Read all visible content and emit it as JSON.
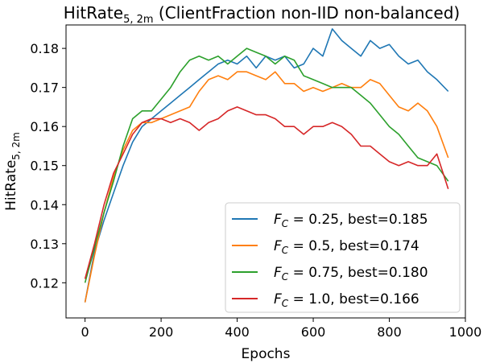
{
  "chart_data": {
    "type": "line",
    "title_main": "HitRate",
    "title_sub": "5, 2m",
    "title_rest": " (ClientFraction non-IID non-balanced)",
    "xlabel": "Epochs",
    "ylabel_main": "HitRate",
    "ylabel_sub": "5, 2m",
    "xlim": [
      -50,
      1000
    ],
    "ylim": [
      0.111,
      0.186
    ],
    "xticks": [
      0,
      200,
      400,
      600,
      800,
      1000
    ],
    "yticks": [
      0.12,
      0.13,
      0.14,
      0.15,
      0.16,
      0.17,
      0.18
    ],
    "legend_position": "lower-right",
    "series": [
      {
        "name_symbol": "F",
        "name_sub": "C",
        "name_rest": " = 0.25, best=0.185",
        "color": "#1f77b4",
        "x": [
          0,
          25,
          50,
          75,
          100,
          125,
          150,
          175,
          200,
          225,
          250,
          275,
          300,
          325,
          350,
          375,
          400,
          425,
          450,
          475,
          500,
          525,
          550,
          575,
          600,
          625,
          650,
          675,
          700,
          725,
          750,
          775,
          800,
          825,
          850,
          875,
          900,
          925,
          955
        ],
        "y": [
          0.115,
          0.128,
          0.136,
          0.143,
          0.15,
          0.156,
          0.16,
          0.162,
          0.164,
          0.166,
          0.168,
          0.17,
          0.172,
          0.174,
          0.176,
          0.177,
          0.176,
          0.178,
          0.175,
          0.178,
          0.177,
          0.178,
          0.175,
          0.176,
          0.18,
          0.178,
          0.185,
          0.182,
          0.18,
          0.178,
          0.182,
          0.18,
          0.181,
          0.178,
          0.176,
          0.177,
          0.174,
          0.172,
          0.169
        ]
      },
      {
        "name_symbol": "F",
        "name_sub": "C",
        "name_rest": " = 0.5, best=0.174",
        "color": "#ff7f0e",
        "x": [
          0,
          25,
          50,
          75,
          100,
          125,
          150,
          175,
          200,
          225,
          250,
          275,
          300,
          325,
          350,
          375,
          400,
          425,
          450,
          475,
          500,
          525,
          550,
          575,
          600,
          625,
          650,
          675,
          700,
          725,
          750,
          775,
          800,
          825,
          850,
          875,
          900,
          925,
          955
        ],
        "y": [
          0.115,
          0.127,
          0.138,
          0.147,
          0.154,
          0.159,
          0.161,
          0.161,
          0.162,
          0.163,
          0.164,
          0.165,
          0.169,
          0.172,
          0.173,
          0.172,
          0.174,
          0.174,
          0.173,
          0.172,
          0.174,
          0.171,
          0.171,
          0.169,
          0.17,
          0.169,
          0.17,
          0.171,
          0.17,
          0.17,
          0.172,
          0.171,
          0.168,
          0.165,
          0.164,
          0.166,
          0.164,
          0.16,
          0.152
        ]
      },
      {
        "name_symbol": "F",
        "name_sub": "C",
        "name_rest": " = 0.75, best=0.180",
        "color": "#2ca02c",
        "x": [
          0,
          25,
          50,
          75,
          100,
          125,
          150,
          175,
          200,
          225,
          250,
          275,
          300,
          325,
          350,
          375,
          400,
          425,
          450,
          475,
          500,
          525,
          550,
          575,
          600,
          625,
          650,
          675,
          700,
          725,
          750,
          775,
          800,
          825,
          850,
          875,
          900,
          925,
          955
        ],
        "y": [
          0.12,
          0.129,
          0.138,
          0.146,
          0.155,
          0.162,
          0.164,
          0.164,
          0.167,
          0.17,
          0.174,
          0.177,
          0.178,
          0.177,
          0.178,
          0.176,
          0.178,
          0.18,
          0.179,
          0.178,
          0.176,
          0.178,
          0.177,
          0.173,
          0.172,
          0.171,
          0.17,
          0.17,
          0.17,
          0.168,
          0.166,
          0.163,
          0.16,
          0.158,
          0.155,
          0.152,
          0.151,
          0.15,
          0.146
        ]
      },
      {
        "name_symbol": "F",
        "name_sub": "C",
        "name_rest": " = 1.0, best=0.166",
        "color": "#d62728",
        "x": [
          0,
          25,
          50,
          75,
          100,
          125,
          150,
          175,
          200,
          225,
          250,
          275,
          300,
          325,
          350,
          375,
          400,
          425,
          450,
          475,
          500,
          525,
          550,
          575,
          600,
          625,
          650,
          675,
          700,
          725,
          750,
          775,
          800,
          825,
          850,
          875,
          900,
          925,
          955
        ],
        "y": [
          0.121,
          0.13,
          0.14,
          0.148,
          0.153,
          0.158,
          0.161,
          0.162,
          0.162,
          0.161,
          0.162,
          0.161,
          0.159,
          0.161,
          0.162,
          0.164,
          0.165,
          0.164,
          0.163,
          0.163,
          0.162,
          0.16,
          0.16,
          0.158,
          0.16,
          0.16,
          0.161,
          0.16,
          0.158,
          0.155,
          0.155,
          0.153,
          0.151,
          0.15,
          0.151,
          0.15,
          0.15,
          0.153,
          0.144
        ]
      }
    ]
  }
}
